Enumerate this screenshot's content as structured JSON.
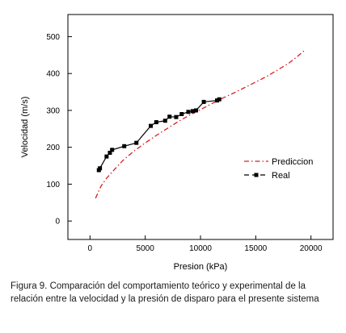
{
  "chart_data": {
    "type": "line",
    "xlabel": "Presion (kPa)",
    "ylabel": "Velocidad (m/s)",
    "xlim": [
      -2000,
      22000
    ],
    "ylim": [
      -50,
      560
    ],
    "xticks": [
      0,
      5000,
      10000,
      15000,
      20000
    ],
    "yticks": [
      0,
      100,
      200,
      300,
      400,
      500
    ],
    "grid": false,
    "legend_position": "center-right",
    "series": [
      {
        "name": "Prediccion",
        "style": "dash-dot",
        "color": "#d62020",
        "x": [
          500,
          1000,
          1500,
          2000,
          3000,
          4000,
          5000,
          6000,
          7000,
          8000,
          9000,
          10000,
          11000,
          12000,
          13000,
          14000,
          15000,
          16000,
          17000,
          18000,
          19000,
          19500
        ],
        "y": [
          62,
          95,
          116,
          133,
          165,
          190,
          212,
          232,
          251,
          270,
          287,
          302,
          318,
          333,
          347,
          362,
          377,
          392,
          410,
          428,
          452,
          465
        ]
      },
      {
        "name": "Real",
        "style": "solid-square-markers",
        "color": "#000000",
        "x": [
          800,
          900,
          1500,
          1800,
          2000,
          3100,
          4200,
          5500,
          6000,
          6800,
          7200,
          7800,
          8300,
          8900,
          9300,
          9600,
          10300,
          11500,
          11700
        ],
        "y": [
          138,
          143,
          175,
          185,
          193,
          203,
          212,
          258,
          268,
          272,
          283,
          282,
          290,
          296,
          298,
          300,
          323,
          327,
          330
        ]
      }
    ]
  },
  "caption": "Figura 9. Comparación del comportamiento teórico y experimental de la relación entre la velocidad y la presión de disparo para el presente sistema"
}
